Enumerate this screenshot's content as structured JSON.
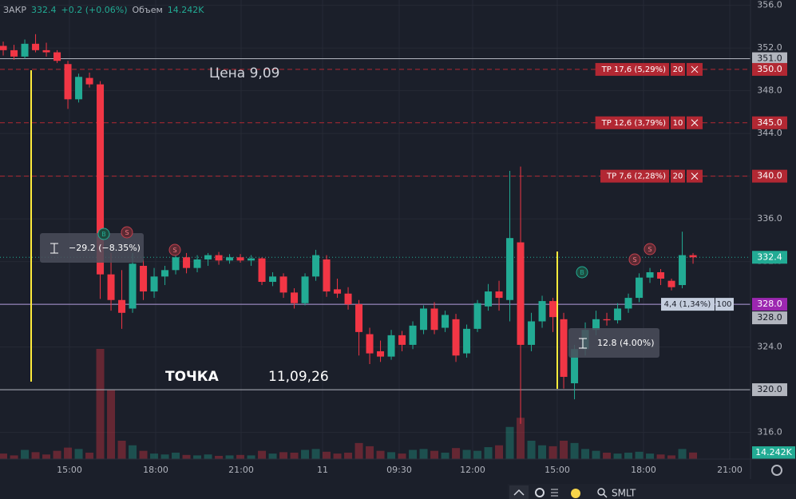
{
  "header": {
    "label": "ЗАКР",
    "close": 332.4,
    "change": "+0.2 (+0.06%)",
    "volume_label": "Объем",
    "volume": "14.242K"
  },
  "chart_data": {
    "type": "candlestick",
    "open": [
      352.2,
      351.8,
      351.2,
      352.4,
      351.8,
      351.6,
      350.5,
      347.2,
      349.2,
      348.6,
      330.8,
      328.4,
      327.6,
      331.6,
      329.2,
      330.6,
      331.2,
      332.4,
      331.4,
      332.2,
      332.6,
      332.1,
      332.4,
      332.1,
      332.3,
      330.1,
      330.6,
      329.1,
      328.1,
      330.6,
      332.2,
      329.4,
      329,
      328,
      325.2,
      323.6,
      323.1,
      325.1,
      324.2,
      325.6,
      327.6,
      325.8,
      326.6,
      323.4,
      325.7,
      327.8,
      329.2,
      328.4,
      333.8,
      324.2,
      326.4,
      328.3,
      326.6,
      320.6,
      323.8,
      325.6,
      326.6,
      326.5,
      327.6,
      328.6,
      330.5,
      331,
      330.2,
      329.8,
      332.6
    ],
    "high": [
      352.6,
      352.3,
      352.8,
      353.3,
      352.5,
      351.8,
      350.8,
      349.6,
      349.7,
      348.9,
      332.8,
      331.2,
      332.8,
      332.2,
      331.4,
      331.6,
      332.9,
      332.8,
      332.6,
      332.8,
      332.9,
      332.7,
      332.7,
      332.6,
      332.4,
      331,
      330.9,
      329.5,
      330.9,
      333.1,
      332.6,
      330.4,
      329.6,
      328.4,
      325.8,
      324.6,
      325.6,
      325.5,
      326.4,
      327.9,
      328.2,
      327.4,
      327.1,
      326.1,
      328.4,
      329.9,
      330.2,
      340.5,
      340.9,
      327.2,
      328.8,
      328.6,
      327.2,
      324.2,
      326.3,
      327.4,
      327.2,
      328.1,
      329,
      330.9,
      331.4,
      331.3,
      330.4,
      334.8,
      332.8
    ],
    "low": [
      351.3,
      350.9,
      351,
      351.6,
      351.2,
      350.6,
      346.3,
      346.9,
      348.3,
      328.5,
      327.4,
      325.7,
      327.2,
      328.4,
      328.6,
      329.8,
      330.8,
      330.9,
      331,
      331.6,
      331.7,
      331.8,
      331.9,
      331.6,
      329.8,
      329.7,
      328.6,
      327.6,
      327.9,
      330.2,
      328.7,
      328.6,
      327.5,
      323.2,
      322.4,
      322.6,
      322.8,
      323.6,
      323.8,
      325.2,
      325.2,
      325.4,
      322.6,
      323,
      325.4,
      327.4,
      327.4,
      326.4,
      316.8,
      323.6,
      325.8,
      325.4,
      320.1,
      319.1,
      323.2,
      325.1,
      326,
      326.2,
      327.2,
      328.2,
      330,
      329.8,
      329.3,
      329.5,
      331.8
    ],
    "close": [
      351.8,
      351.2,
      352.4,
      351.8,
      351.6,
      350.8,
      347.2,
      349.3,
      348.6,
      330.8,
      328.4,
      327.2,
      331.8,
      329.2,
      330.6,
      331.2,
      332.4,
      331.4,
      332.2,
      332.6,
      332.1,
      332.4,
      332.1,
      332.3,
      330.1,
      330.6,
      329.1,
      328.1,
      330.6,
      332.6,
      329.2,
      329.0,
      328.0,
      325.4,
      323.4,
      323.1,
      325.1,
      324.2,
      326.0,
      327.6,
      325.6,
      327.0,
      323.2,
      325.7,
      328.1,
      329.2,
      328.6,
      334.2,
      324.2,
      326.4,
      328.3,
      326.8,
      321.2,
      323.8,
      325.6,
      326.6,
      326.5,
      327.6,
      328.6,
      330.5,
      331.0,
      330.4,
      329.6,
      332.6,
      332.4
    ],
    "volume": [
      12,
      8,
      20,
      15,
      10,
      18,
      25,
      22,
      14,
      240,
      150,
      40,
      30,
      18,
      12,
      10,
      14,
      9,
      8,
      10,
      7,
      8,
      9,
      8,
      18,
      12,
      15,
      14,
      20,
      22,
      16,
      12,
      14,
      35,
      28,
      18,
      15,
      12,
      20,
      22,
      18,
      14,
      24,
      20,
      18,
      26,
      30,
      70,
      90,
      40,
      30,
      28,
      40,
      35,
      22,
      18,
      14,
      12,
      14,
      16,
      12,
      10,
      8,
      22,
      14.242
    ],
    "up_color": "#22ab94",
    "down_color": "#f23645",
    "ylim": [
      313.5,
      356.5
    ],
    "y2lim": [
      0,
      1000
    ],
    "yticks": [
      {
        "value": 356,
        "label": "356.0"
      },
      {
        "value": 352,
        "label": "352.0"
      },
      {
        "value": 348,
        "label": "348.0"
      },
      {
        "value": 344,
        "label": "344.0"
      },
      {
        "value": 340,
        "label": "340.0"
      },
      {
        "value": 336,
        "label": "336.0"
      },
      {
        "value": 332,
        "label": "332.0"
      },
      {
        "value": 328,
        "label": "328.0"
      },
      {
        "value": 324,
        "label": "324.0"
      },
      {
        "value": 320,
        "label": "320.0"
      },
      {
        "value": 316,
        "label": "316.0"
      }
    ],
    "xtick_labels": [
      "15:00",
      "18:00",
      "21:00",
      "11",
      "09:30",
      "12:00",
      "15:00",
      "18:00",
      "21:00"
    ],
    "grid": true,
    "levels": [
      {
        "value": 351,
        "label": "351.0",
        "color": "#b2b5be",
        "style": "solid"
      },
      {
        "value": 350,
        "label": "350.0",
        "color": "#b22833",
        "style": "dashed"
      },
      {
        "value": 345,
        "label": "345.0",
        "color": "#b22833",
        "style": "dashed"
      },
      {
        "value": 340,
        "label": "340.0",
        "color": "#b22833",
        "style": "dashed"
      },
      {
        "value": 332.4,
        "label": "332.4",
        "color": "#22ab94",
        "style": "dotted"
      },
      {
        "value": 328,
        "label": "328.0",
        "color": "#9c27b0",
        "style": "solid"
      },
      {
        "value": 328,
        "label": "328.0",
        "color": "#b2b5be",
        "style": "none"
      },
      {
        "value": 320,
        "label": "320.0",
        "color": "#b2b5be",
        "style": "solid"
      }
    ],
    "orders": [
      {
        "label": "TP 17,6 (5,29%)",
        "qty": 20,
        "value": 350
      },
      {
        "label": "TP 12,6 (3,79%)",
        "qty": 10,
        "value": 345
      },
      {
        "label": "TP 7,6 (2,28%)",
        "qty": 20,
        "value": 340
      }
    ],
    "position": {
      "label": "4,4 (1,34%)",
      "qty": 100,
      "value": 328
    },
    "markers": [
      "B",
      "S",
      "S",
      "B",
      "S",
      "S"
    ],
    "measures": [
      "−29.2  (−8.35%)",
      "12.8 (4.00%)"
    ],
    "annotations": [
      "Цена  9,09",
      "ТОЧКА",
      "11,09,26"
    ]
  },
  "toolbar": {
    "symbol": "SMLT"
  }
}
